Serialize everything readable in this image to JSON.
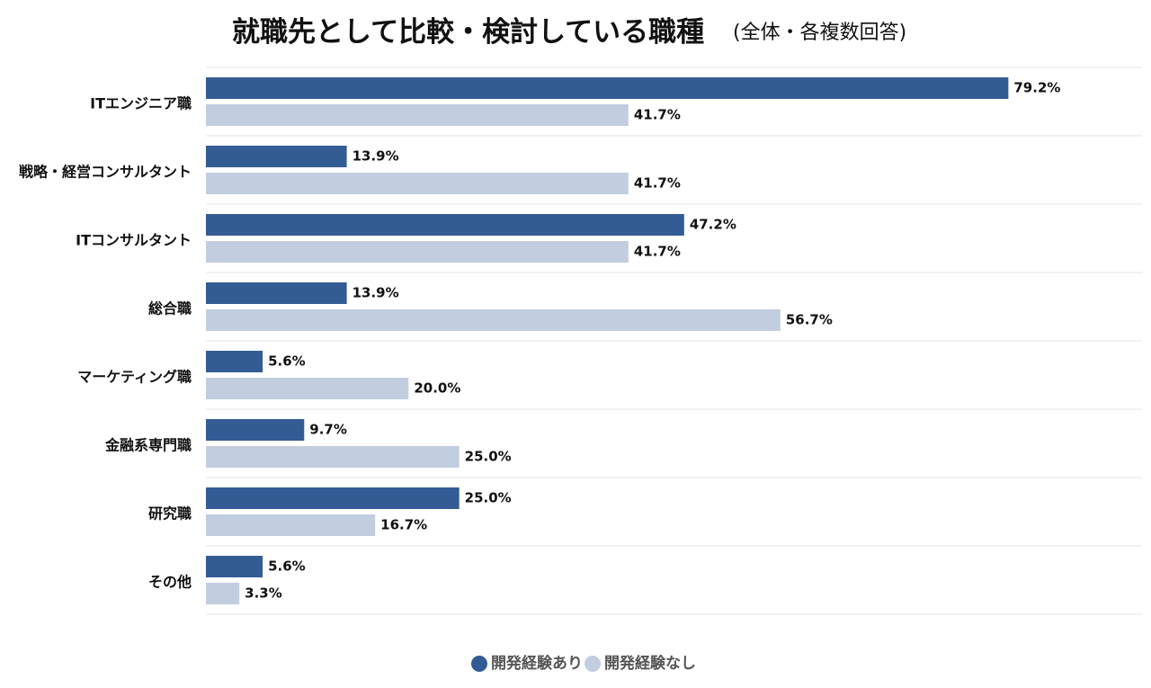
{
  "chart_data": {
    "type": "bar",
    "orientation": "horizontal",
    "title": "就職先として比較・検討している職種",
    "subtitle": "(全体・各複数回答)",
    "categories": [
      "ITエンジニア職",
      "戦略・経営コンサルタント",
      "ITコンサルタント",
      "総合職",
      "マーケティング職",
      "金融系専門職",
      "研究職",
      "その他"
    ],
    "series": [
      {
        "name": "開発経験あり",
        "color": "#335c94",
        "values": [
          79.2,
          13.9,
          47.2,
          13.9,
          5.6,
          9.7,
          25.0,
          5.6
        ]
      },
      {
        "name": "開発経験なし",
        "color": "#c2cde0",
        "values": [
          41.7,
          41.7,
          41.7,
          56.7,
          20.0,
          25.0,
          16.7,
          3.3
        ]
      }
    ],
    "value_suffix": "%",
    "xlim": [
      0,
      86
    ],
    "grid": false,
    "legend_position": "bottom-center"
  }
}
